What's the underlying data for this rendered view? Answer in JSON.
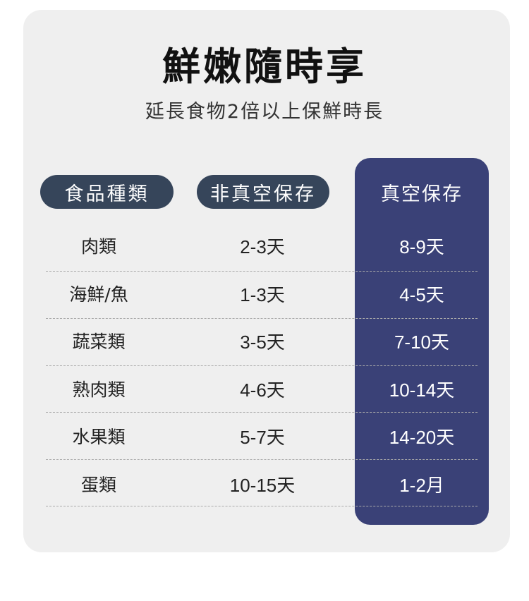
{
  "title": "鮮嫩隨時享",
  "subtitle": "延長食物2倍以上保鮮時長",
  "headers": [
    "食品種類",
    "非真空保存",
    "真空保存"
  ],
  "rows": [
    {
      "food": "肉類",
      "normal": "2-3天",
      "vacuum": "8-9天"
    },
    {
      "food": "海鮮/魚",
      "normal": "1-3天",
      "vacuum": "4-5天"
    },
    {
      "food": "蔬菜類",
      "normal": "3-5天",
      "vacuum": "7-10天"
    },
    {
      "food": "熟肉類",
      "normal": "4-6天",
      "vacuum": "10-14天"
    },
    {
      "food": "水果類",
      "normal": "5-7天",
      "vacuum": "14-20天"
    },
    {
      "food": "蛋類",
      "normal": "10-15天",
      "vacuum": "1-2月"
    }
  ],
  "colors": {
    "header_pill": "#36455a",
    "vacuum_column": "#3a4177",
    "card": "#efefef"
  }
}
